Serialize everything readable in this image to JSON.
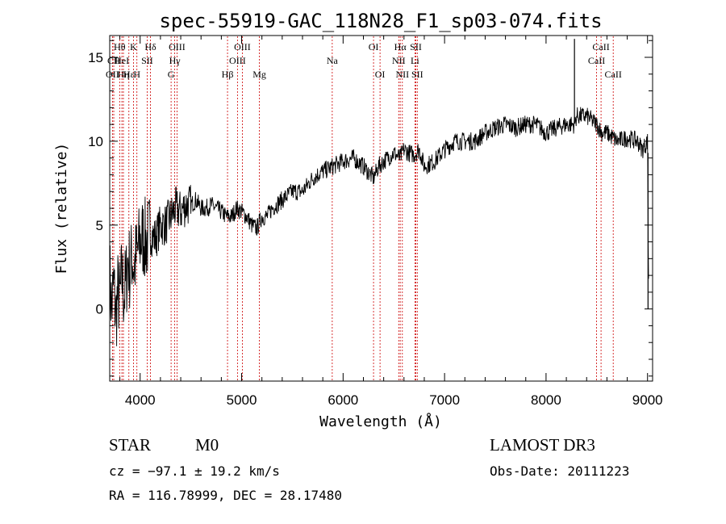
{
  "chart_data": {
    "type": "line",
    "title": "spec-55919-GAC_118N28_F1_sp03-074.fits",
    "xlabel": "Wavelength (Å)",
    "ylabel": "Flux (relative)",
    "xlim": [
      3700,
      9050
    ],
    "ylim": [
      -4.3,
      16.3
    ],
    "xticks": [
      4000,
      5000,
      6000,
      7000,
      8000,
      9000
    ],
    "yticks": [
      0,
      5,
      10,
      15
    ],
    "series": [
      {
        "name": "flux",
        "x": [
          3700,
          3720,
          3740,
          3760,
          3780,
          3800,
          3820,
          3840,
          3860,
          3880,
          3900,
          3920,
          3940,
          3960,
          3980,
          4000,
          4030,
          4060,
          4100,
          4150,
          4200,
          4250,
          4300,
          4350,
          4400,
          4450,
          4500,
          4550,
          4600,
          4650,
          4700,
          4750,
          4800,
          4850,
          4900,
          4950,
          5000,
          5050,
          5100,
          5150,
          5200,
          5250,
          5300,
          5400,
          5500,
          5600,
          5700,
          5800,
          5900,
          6000,
          6100,
          6200,
          6300,
          6350,
          6400,
          6500,
          6560,
          6600,
          6650,
          6700,
          6750,
          6800,
          6900,
          7000,
          7100,
          7200,
          7300,
          7400,
          7500,
          7600,
          7700,
          7800,
          7900,
          8000,
          8100,
          8200,
          8280,
          8300,
          8400,
          8500,
          8550,
          8600,
          8700,
          8800,
          8900,
          8950,
          9000,
          9010
        ],
        "y": [
          2,
          0,
          1.5,
          -0.5,
          1,
          0.5,
          2,
          0.8,
          1.5,
          3,
          2.2,
          3.2,
          2.5,
          3,
          3.5,
          4,
          4.3,
          4,
          4.5,
          4.2,
          5,
          5,
          5.5,
          6,
          5.8,
          6.2,
          6.2,
          6.5,
          6,
          6,
          6.2,
          6,
          5.8,
          5.5,
          5.5,
          6,
          5.8,
          5.5,
          5,
          4.8,
          5.5,
          5.5,
          6,
          6.5,
          7,
          7,
          7.8,
          8.2,
          8.5,
          8.8,
          9,
          8.5,
          7.8,
          8.5,
          8.8,
          9.3,
          9,
          9.5,
          9.3,
          9.2,
          9.5,
          8.5,
          8.8,
          9.5,
          10,
          10,
          10,
          10.5,
          10.8,
          11,
          10.8,
          11,
          11,
          10.5,
          10.8,
          11,
          11,
          11.5,
          11.5,
          11,
          10.5,
          10.5,
          10,
          10.2,
          10,
          9.5,
          10,
          1.8
        ]
      }
    ],
    "spectral_lines": [
      {
        "label": "Hθ",
        "wl": 3798,
        "row": 1
      },
      {
        "label": "OII",
        "wl": 3727,
        "row": 3
      },
      {
        "label": "CII",
        "wl": 3740,
        "row": 2
      },
      {
        "label": "Hε",
        "wl": 3889,
        "row": 3
      },
      {
        "label": "Hη",
        "wl": 3835,
        "row": 3
      },
      {
        "label": "K",
        "wl": 3934,
        "row": 1
      },
      {
        "label": "HeI",
        "wl": 3820,
        "row": 2
      },
      {
        "label": "SII",
        "wl": 4069,
        "row": 2
      },
      {
        "label": "H",
        "wl": 3968,
        "row": 3
      },
      {
        "label": "Hδ",
        "wl": 4102,
        "row": 1
      },
      {
        "label": "OIII",
        "wl": 4363,
        "row": 1
      },
      {
        "label": "Hγ",
        "wl": 4341,
        "row": 2
      },
      {
        "label": "G",
        "wl": 4305,
        "row": 3
      },
      {
        "label": "OIII",
        "wl": 5007,
        "row": 1
      },
      {
        "label": "OIII",
        "wl": 4959,
        "row": 2
      },
      {
        "label": "Hβ",
        "wl": 4861,
        "row": 3
      },
      {
        "label": "Mg",
        "wl": 5175,
        "row": 3
      },
      {
        "label": "Na",
        "wl": 5893,
        "row": 2
      },
      {
        "label": "OI",
        "wl": 6300,
        "row": 1
      },
      {
        "label": "OI",
        "wl": 6364,
        "row": 3
      },
      {
        "label": "Hα",
        "wl": 6563,
        "row": 1
      },
      {
        "label": "NII",
        "wl": 6548,
        "row": 2
      },
      {
        "label": "NII",
        "wl": 6584,
        "row": 3
      },
      {
        "label": "SII",
        "wl": 6717,
        "row": 1
      },
      {
        "label": "Li",
        "wl": 6708,
        "row": 2
      },
      {
        "label": "SII",
        "wl": 6731,
        "row": 3
      },
      {
        "label": "CaII",
        "wl": 8542,
        "row": 1
      },
      {
        "label": "CaII",
        "wl": 8498,
        "row": 2
      },
      {
        "label": "CaII",
        "wl": 8662,
        "row": 3
      }
    ]
  },
  "info": {
    "class": "STAR",
    "subclass": "M0",
    "survey": "LAMOST DR3",
    "cz": "cz = −97.1 ± 19.2 km/s",
    "obs_date": "Obs-Date: 20111223",
    "coords": "RA = 116.78999, DEC =  28.17480"
  },
  "colors": {
    "line_marker": "#cc0000",
    "spectrum": "#000000",
    "axes": "#000000"
  }
}
